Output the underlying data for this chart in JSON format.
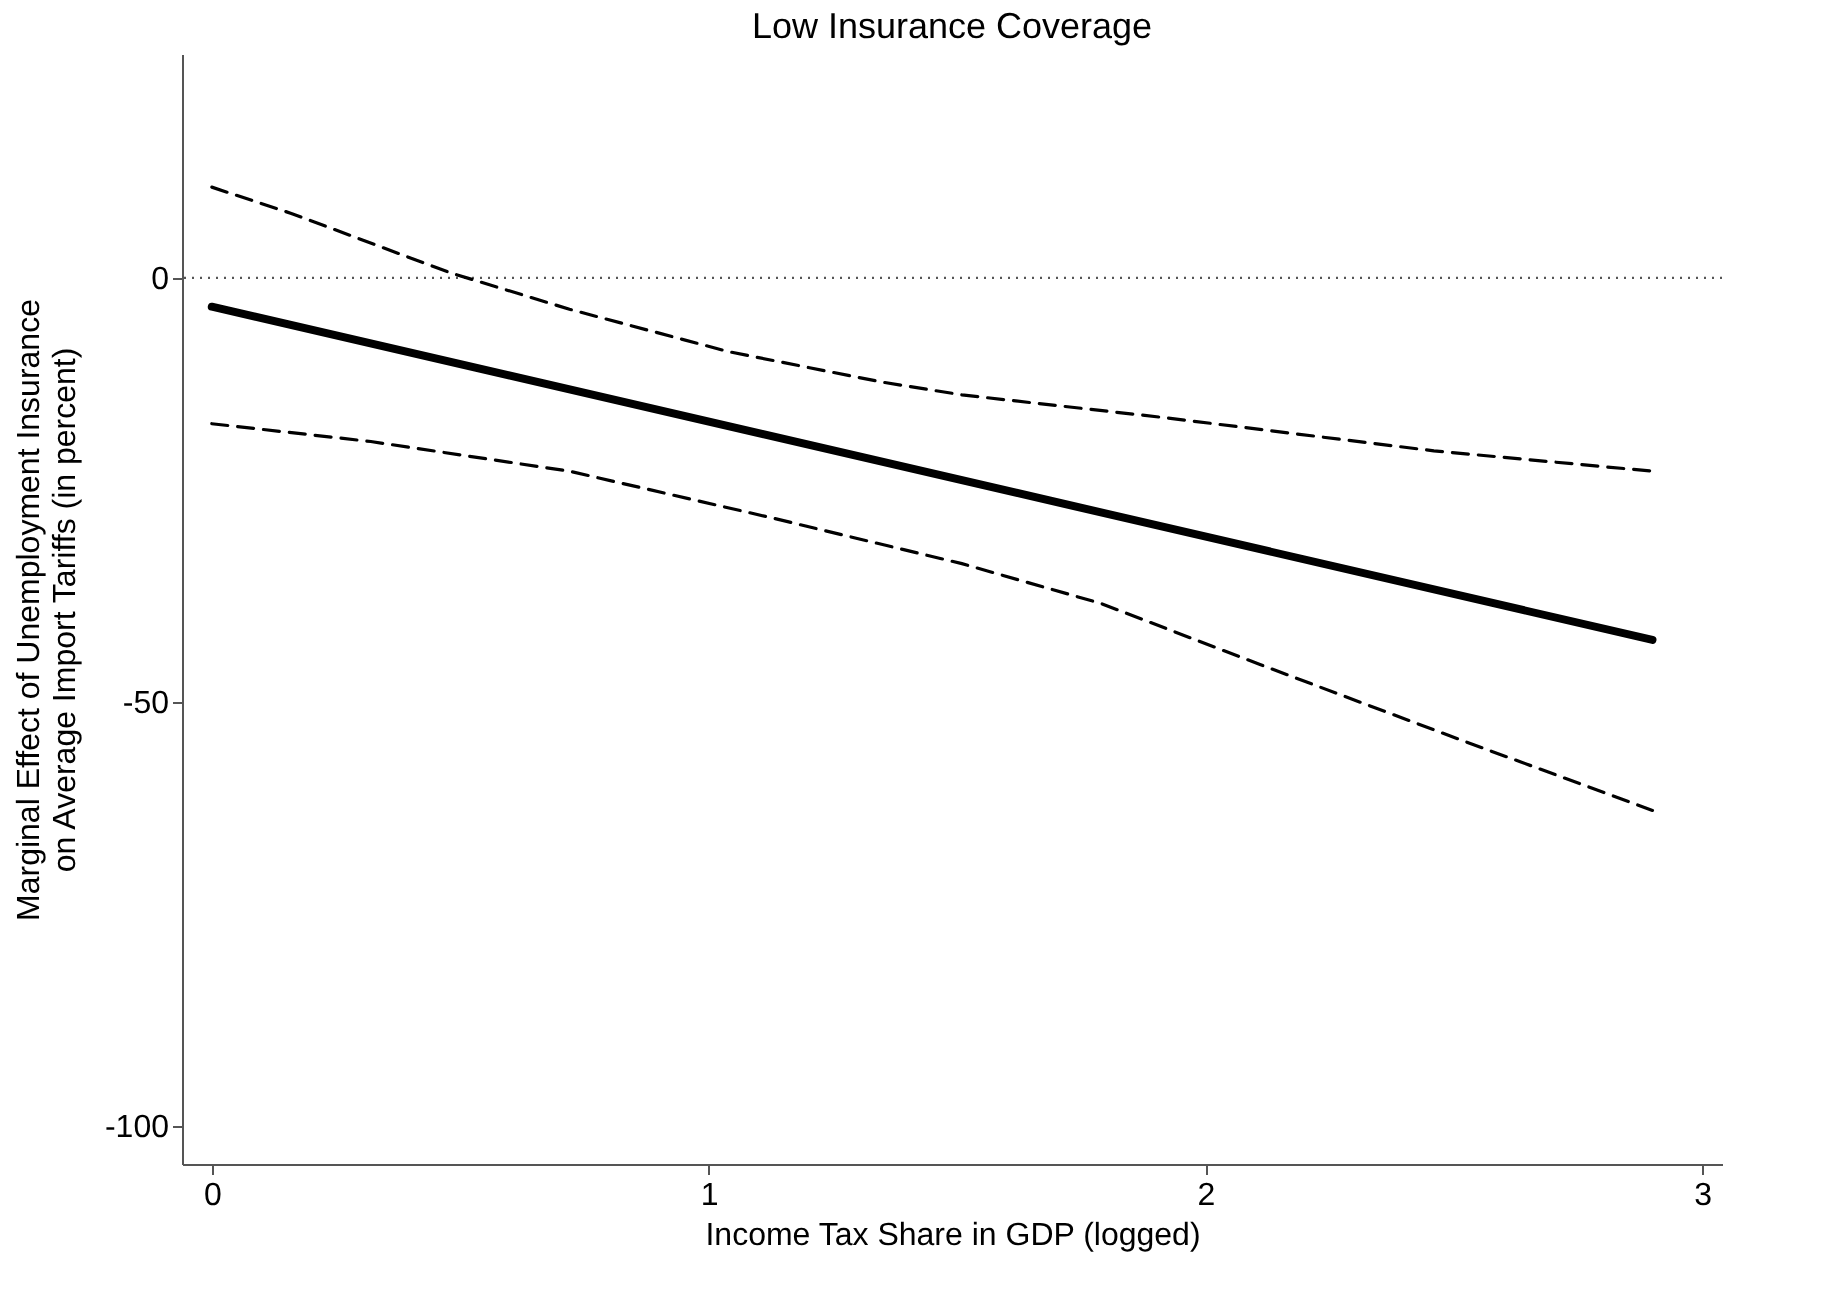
{
  "chart_data": {
    "type": "line",
    "title": "Low Insurance Coverage",
    "xlabel": "Income Tax Share in GDP (logged)",
    "ylabel": "Marginal Effect of Unemployment Insurance\non Average Import Tariffs (in percent)",
    "series": [
      {
        "color": "#000000",
        "line_style": "solid",
        "x": [
          0,
          2.9
        ],
        "values": [
          -3.4,
          -42.7
        ]
      },
      {
        "color": "#000000",
        "line_style": "dashed",
        "x": [
          0,
          0.16,
          0.48,
          0.72,
          1.04,
          1.35,
          1.51,
          1.92,
          2.46,
          2.9
        ],
        "values": [
          10.7,
          7.6,
          0.6,
          -3.7,
          -8.7,
          -12.3,
          -13.8,
          -16.5,
          -20.4,
          -22.8
        ]
      },
      {
        "color": "#000000",
        "line_style": "dashed",
        "x": [
          0,
          0.32,
          0.72,
          1.12,
          1.51,
          1.79,
          2.11,
          2.51,
          2.9
        ],
        "values": [
          -17.2,
          -19.3,
          -22.8,
          -28.2,
          -33.7,
          -38.4,
          -45.6,
          -54.4,
          -62.8
        ]
      }
    ],
    "xlim": [
      -0.06,
      3.04
    ],
    "ylim": [
      -104.5,
      26.4
    ],
    "xticks": [
      0,
      1,
      2,
      3
    ],
    "yticks": [
      -100,
      -50,
      0
    ],
    "ref_lines": [
      {
        "axis": "y",
        "value": 0,
        "line_style": "dotted",
        "color": "#555555"
      }
    ],
    "grid": false
  }
}
